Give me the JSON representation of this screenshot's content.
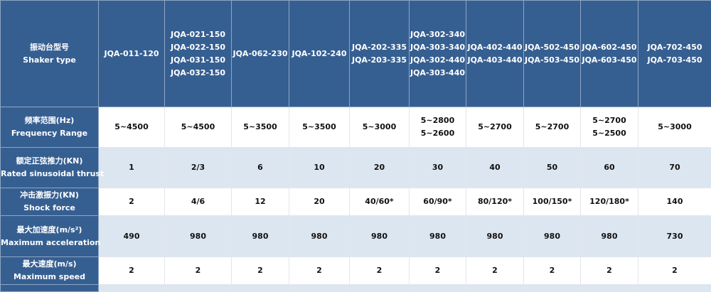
{
  "header": {
    "label_cn": "振动台型号",
    "label_en": "Shaker type",
    "models": [
      [
        "JQA-011-120"
      ],
      [
        "JQA-021-150",
        "JQA-022-150",
        "JQA-031-150",
        "JQA-032-150"
      ],
      [
        "JQA-062-230"
      ],
      [
        "JQA-102-240"
      ],
      [
        "JQA-202-335",
        "JQA-203-335"
      ],
      [
        "JQA-302-340",
        "JQA-303-340",
        "JQA-302-440",
        "JQA-303-440"
      ],
      [
        "JQA-402-440",
        "JQA-403-440"
      ],
      [
        "JQA-502-450",
        "JQA-503-450"
      ],
      [
        "JQA-602-450",
        "JQA-603-450"
      ],
      [
        "JQA-702-450",
        "JQA-703-450"
      ]
    ]
  },
  "rows": [
    {
      "label_cn": "频率范围(Hz)",
      "label_en": "Frequency Range",
      "values": [
        [
          "5~4500"
        ],
        [
          "5~4500"
        ],
        [
          "5~3500"
        ],
        [
          "5~3500"
        ],
        [
          "5~3000"
        ],
        [
          "5~2800",
          "5~2600"
        ],
        [
          "5~2700"
        ],
        [
          "5~2700"
        ],
        [
          "5~2700",
          "5~2500"
        ],
        [
          "5~3000"
        ]
      ]
    },
    {
      "label_cn": "额定正弦推力(KN)",
      "label_en": "Rated sinusoidal thrust",
      "values": [
        [
          "1"
        ],
        [
          "2/3"
        ],
        [
          "6"
        ],
        [
          "10"
        ],
        [
          "20"
        ],
        [
          "30"
        ],
        [
          "40"
        ],
        [
          "50"
        ],
        [
          "60"
        ],
        [
          "70"
        ]
      ]
    },
    {
      "label_cn": "冲击激振力(KN)",
      "label_en": "Shock force",
      "values": [
        [
          "2"
        ],
        [
          "4/6"
        ],
        [
          "12"
        ],
        [
          "20"
        ],
        [
          "40/60*"
        ],
        [
          "60/90*"
        ],
        [
          "80/120*"
        ],
        [
          "100/150*"
        ],
        [
          "120/180*"
        ],
        [
          "140"
        ]
      ]
    },
    {
      "label_cn": "最大加速度(m/s²)",
      "label_en": "Maximum acceleration",
      "values": [
        [
          "490"
        ],
        [
          "980"
        ],
        [
          "980"
        ],
        [
          "980"
        ],
        [
          "980"
        ],
        [
          "980"
        ],
        [
          "980"
        ],
        [
          "980"
        ],
        [
          "980"
        ],
        [
          "730"
        ]
      ]
    },
    {
      "label_cn": "最大速度(m/s)",
      "label_en": "Maximum speed",
      "values": [
        [
          "2"
        ],
        [
          "2"
        ],
        [
          "2"
        ],
        [
          "2"
        ],
        [
          "2"
        ],
        [
          "2"
        ],
        [
          "2"
        ],
        [
          "2"
        ],
        [
          "2"
        ],
        [
          "2"
        ]
      ]
    }
  ],
  "colors": {
    "header_bg": "#365f91",
    "alt_row_bg": "#dce6f1"
  }
}
